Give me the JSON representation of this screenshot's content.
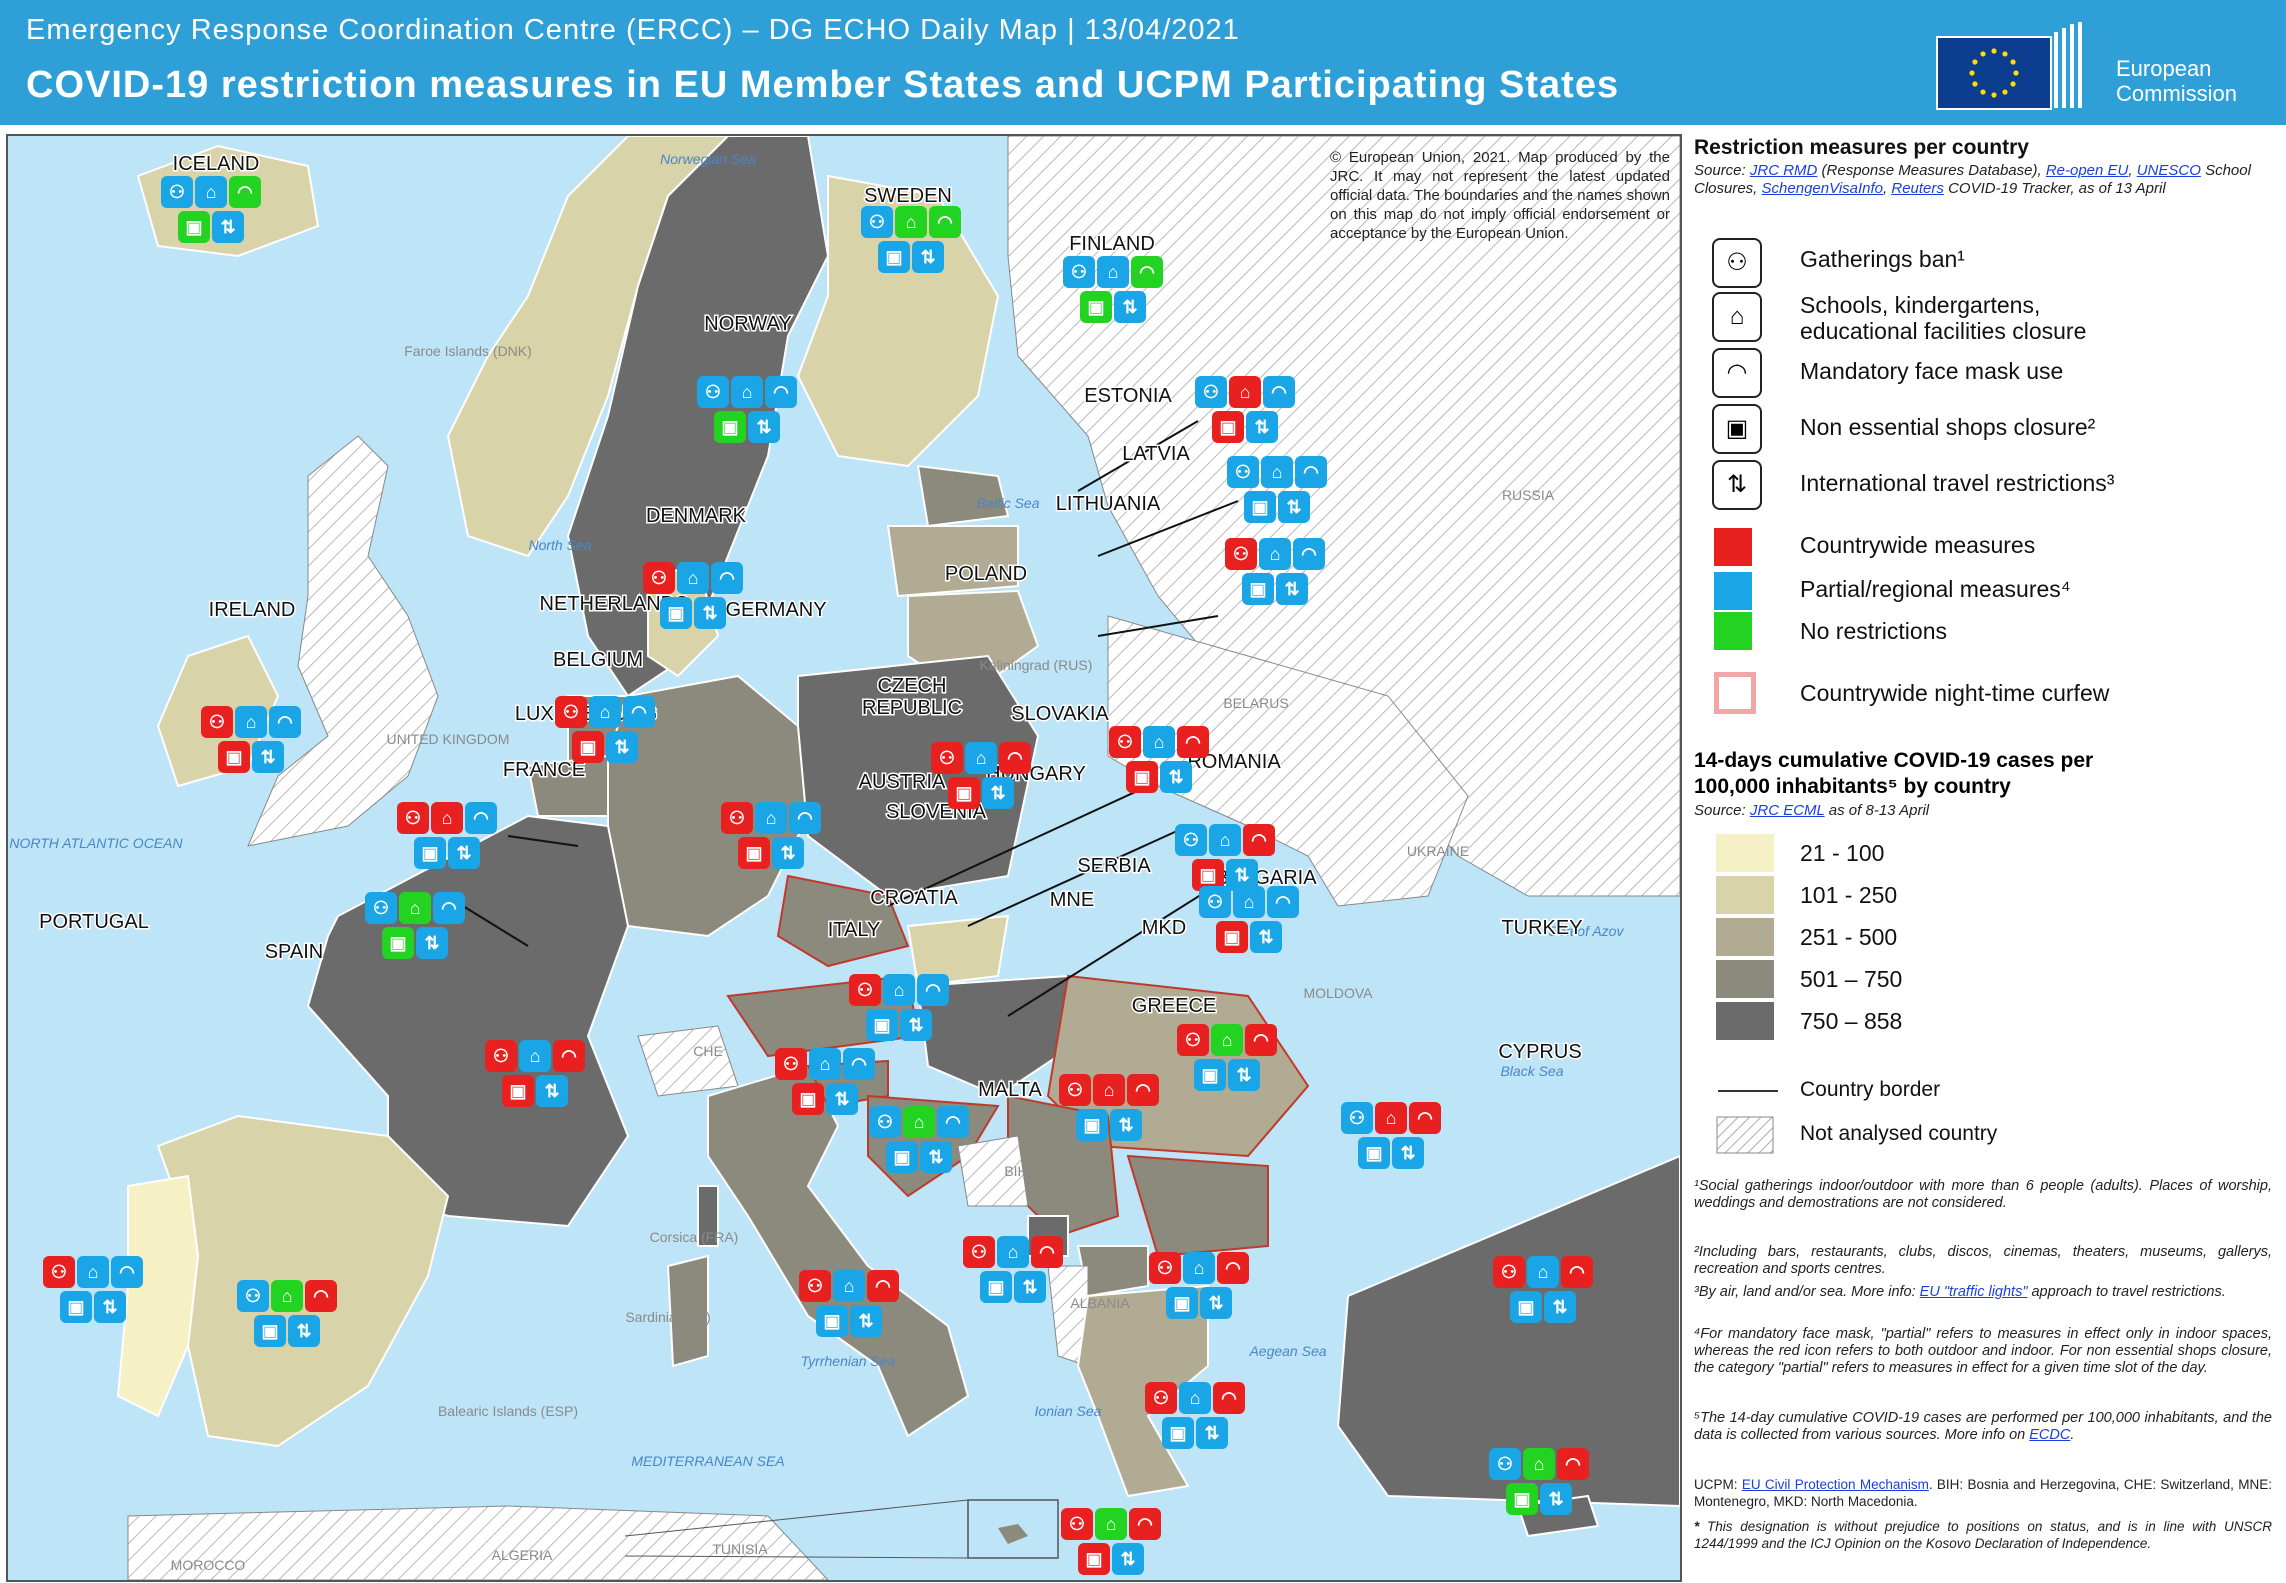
{
  "header": {
    "subtitle": "Emergency Response Coordination Centre (ERCC) – DG ECHO Daily Map | 13/04/2021",
    "title": "COVID-19 restriction measures in EU Member States and UCPM Participating States",
    "logo_text_1": "European",
    "logo_text_2": "Commission"
  },
  "colors": {
    "header_blue": "#2f9fd8",
    "red": "#e8201f",
    "blue": "#1aa5e6",
    "green": "#22d322",
    "sea": "#bde4f7",
    "c21_100": "#f6f1c4",
    "c101_250": "#d8d3a8",
    "c251_500": "#b0ab92",
    "c501_750": "#8c8a7c",
    "c750_858": "#6b6b6b"
  },
  "copyright": "© European Union, 2021. Map produced by the JRC. It may not represent the latest updated official data. The boundaries and the names shown on this map do not imply official endorsement or acceptance by the European Union.",
  "map_labels": {
    "countries": [
      "ICELAND",
      "SWEDEN",
      "FINLAND",
      "NORWAY",
      "ESTONIA",
      "LATVIA",
      "LITHUANIA",
      "DENMARK",
      "IRELAND",
      "NETHERLANDS",
      "GERMANY",
      "POLAND",
      "BELGIUM",
      "CZECH",
      "REPUBLIC",
      "SLOVAKIA",
      "LUXEMBOURG",
      "FRANCE",
      "ROMANIA",
      "AUSTRIA",
      "HUNGARY",
      "SLOVENIA",
      "SERBIA",
      "BULGARIA",
      "CROATIA",
      "MNE",
      "MKD",
      "TURKEY",
      "PORTUGAL",
      "SPAIN",
      "ITALY",
      "GREECE",
      "CYPRUS",
      "MALTA"
    ],
    "seas": [
      "Norwegian Sea",
      "North Sea",
      "Baltic Sea",
      "NORTH ATLANTIC OCEAN",
      "Black Sea",
      "Sea of Azov",
      "Tyrrhenian Sea",
      "Ionian Sea",
      "Aegean Sea",
      "MEDITERRANEAN SEA"
    ],
    "others": [
      "Faroe Islands (DNK)",
      "RUSSIA",
      "BELARUS",
      "UKRAINE",
      "MOLDOVA",
      "UNITED KINGDOM",
      "CHE",
      "BIH",
      "ALBANIA",
      "MOROCCO",
      "ALGERIA",
      "TUNISIA",
      "Corsica (FRA)",
      "Sardinia (ITA)",
      "Balearic Islands (ESP)",
      "Kaliningrad (RUS)"
    ]
  },
  "legend": {
    "title": "Restriction measures per country",
    "source_prefix": "Source: ",
    "src_jrc": "JRC RMD",
    "src_rmd_text": " (Response Measures Database), ",
    "src_reopen": "Re-open EU",
    "src_unesco": "UNESCO",
    "src_school": " School Closures, ",
    "src_schengen": "SchengenVisaInfo",
    "src_reuters": "Reuters",
    "src_tail": " COVID-19 Tracker, as of  13 April",
    "items": [
      {
        "icon": "gathering-ban-icon",
        "label": "Gatherings ban¹"
      },
      {
        "icon": "school-icon",
        "label": "Schools, kindergartens,"
      },
      {
        "icon": "school-icon-cont",
        "label": "educational facilities closure"
      },
      {
        "icon": "face-mask-icon",
        "label": "Mandatory face mask use"
      },
      {
        "icon": "shop-closure-icon",
        "label": "Non essential shops closure²"
      },
      {
        "icon": "travel-restriction-icon",
        "label": "International travel restrictions³"
      }
    ],
    "measures": [
      {
        "label": "Countrywide measures",
        "color": "#e8201f"
      },
      {
        "label": "Partial/regional measures⁴",
        "color": "#1aa5e6"
      },
      {
        "label": "No restrictions",
        "color": "#22d322"
      },
      {
        "label": "Countrywide night-time  curfew",
        "color": "#f2a7a7"
      }
    ],
    "cases_title_1": "14-days cumulative COVID-19 cases per",
    "cases_title_2": "100,000 inhabitants⁵ by country",
    "cases_src_prefix": "Source: ",
    "cases_src_link": "JRC ECML",
    "cases_src_tail": " as of  8-13 April",
    "ranges": [
      {
        "label": "21 - 100",
        "color": "#f6f1c4"
      },
      {
        "label": "101 - 250",
        "color": "#d8d3a8"
      },
      {
        "label": "251 - 500",
        "color": "#b0ab92"
      },
      {
        "label": "501 – 750",
        "color": "#8c8a7c"
      },
      {
        "label": "750 – 858",
        "color": "#6b6b6b"
      }
    ],
    "border_label": "Country border",
    "not_analysed_label": "Not analysed country"
  },
  "footnotes": {
    "f1": "¹Social gatherings indoor/outdoor with more than 6 people (adults). Places of worship, weddings and demostrations are not considered.",
    "f2": "²Including bars, restaurants, clubs, discos, cinemas, theaters, museums, gallerys, recreation and sports centres.",
    "f3_pre": "³By air, land and/or sea. More info: ",
    "f3_link": "EU \"traffic lights\"",
    "f3_post": " approach to travel restrictions.",
    "f4": "⁴For mandatory face mask, \"partial\" refers to measures in effect only in indoor spaces, whereas the red icon refers to both outdoor and indoor. For non essential shops closure, the category \"partial\" refers to measures in effect for a given time slot of the day.",
    "f5_pre": "⁵The 14-day cumulative COVID-19 cases are performed per 100,000 inhabitants, and the data is collected  from various sources. More info on ",
    "f5_link": "ECDC",
    "f5_post": ".",
    "ucpm_pre": "UCPM: ",
    "ucpm_link": "EU Civil Protection Mechanism",
    "ucpm_post": ". BIH: Bosnia and Herzegovina, CHE: Switzerland, MNE: Montenegro, MKD: North Macedonia.",
    "star": "*",
    "kosovo": "This designation is without prejudice to positions on status, and is in line with UNSCR 1244/1999 and the ICJ Opinion on the Kosovo Declaration of Independence."
  },
  "country_measures": [
    {
      "name": "ICELAND",
      "codes": [
        "B",
        "B",
        "G",
        "G",
        "B"
      ]
    },
    {
      "name": "SWEDEN",
      "codes": [
        "B",
        "G",
        "G",
        "B",
        "B"
      ]
    },
    {
      "name": "FINLAND",
      "codes": [
        "B",
        "B",
        "G",
        "G",
        "B"
      ]
    },
    {
      "name": "NORWAY",
      "codes": [
        "B",
        "B",
        "B",
        "G",
        "B"
      ]
    },
    {
      "name": "ESTONIA",
      "codes": [
        "B",
        "R",
        "B",
        "R",
        "B"
      ]
    },
    {
      "name": "LATVIA",
      "codes": [
        "B",
        "B",
        "B",
        "B",
        "B"
      ]
    },
    {
      "name": "LITHUANIA",
      "codes": [
        "R",
        "B",
        "B",
        "B",
        "B"
      ]
    },
    {
      "name": "DENMARK",
      "codes": [
        "R",
        "B",
        "B",
        "B",
        "B"
      ]
    },
    {
      "name": "IRELAND",
      "codes": [
        "R",
        "B",
        "B",
        "R",
        "B"
      ]
    },
    {
      "name": "NETHERLANDS",
      "codes": [
        "R",
        "B",
        "B",
        "R",
        "B"
      ]
    },
    {
      "name": "GERMANY",
      "codes": [
        "R",
        "B",
        "B",
        "R",
        "B"
      ]
    },
    {
      "name": "POLAND",
      "codes": [
        "R",
        "B",
        "R",
        "R",
        "B"
      ]
    },
    {
      "name": "BELGIUM",
      "codes": [
        "R",
        "R",
        "B",
        "B",
        "B"
      ]
    },
    {
      "name": "CZECH REPUBLIC",
      "codes": [
        "R",
        "B",
        "R",
        "R",
        "B"
      ]
    },
    {
      "name": "SLOVAKIA",
      "codes": [
        "B",
        "B",
        "R",
        "R",
        "B"
      ]
    },
    {
      "name": "HUNGARY",
      "codes": [
        "B",
        "B",
        "B",
        "R",
        "B"
      ]
    },
    {
      "name": "LUXEMBOURG",
      "codes": [
        "B",
        "G",
        "B",
        "G",
        "B"
      ]
    },
    {
      "name": "FRANCE",
      "codes": [
        "R",
        "B",
        "R",
        "R",
        "B"
      ]
    },
    {
      "name": "AUSTRIA",
      "codes": [
        "R",
        "B",
        "B",
        "B",
        "B"
      ]
    },
    {
      "name": "ROMANIA",
      "codes": [
        "R",
        "G",
        "R",
        "B",
        "B"
      ]
    },
    {
      "name": "SLOVENIA",
      "codes": [
        "R",
        "B",
        "B",
        "R",
        "B"
      ]
    },
    {
      "name": "SERBIA",
      "codes": [
        "R",
        "R",
        "R",
        "B",
        "B"
      ]
    },
    {
      "name": "BULGARIA",
      "codes": [
        "B",
        "R",
        "R",
        "B",
        "B"
      ]
    },
    {
      "name": "CROATIA",
      "codes": [
        "B",
        "G",
        "B",
        "B",
        "B"
      ]
    },
    {
      "name": "MNE",
      "codes": [
        "R",
        "B",
        "R",
        "B",
        "B"
      ]
    },
    {
      "name": "MKD",
      "codes": [
        "R",
        "B",
        "R",
        "B",
        "B"
      ]
    },
    {
      "name": "TURKEY",
      "codes": [
        "R",
        "B",
        "R",
        "B",
        "B"
      ]
    },
    {
      "name": "PORTUGAL",
      "codes": [
        "R",
        "B",
        "B",
        "B",
        "B"
      ]
    },
    {
      "name": "SPAIN",
      "codes": [
        "B",
        "G",
        "R",
        "B",
        "B"
      ]
    },
    {
      "name": "ITALY",
      "codes": [
        "R",
        "B",
        "R",
        "B",
        "B"
      ]
    },
    {
      "name": "GREECE",
      "codes": [
        "R",
        "B",
        "R",
        "B",
        "B"
      ]
    },
    {
      "name": "CYPRUS",
      "codes": [
        "B",
        "G",
        "R",
        "G",
        "B"
      ]
    },
    {
      "name": "MALTA",
      "codes": [
        "R",
        "G",
        "R",
        "R",
        "B"
      ]
    }
  ]
}
